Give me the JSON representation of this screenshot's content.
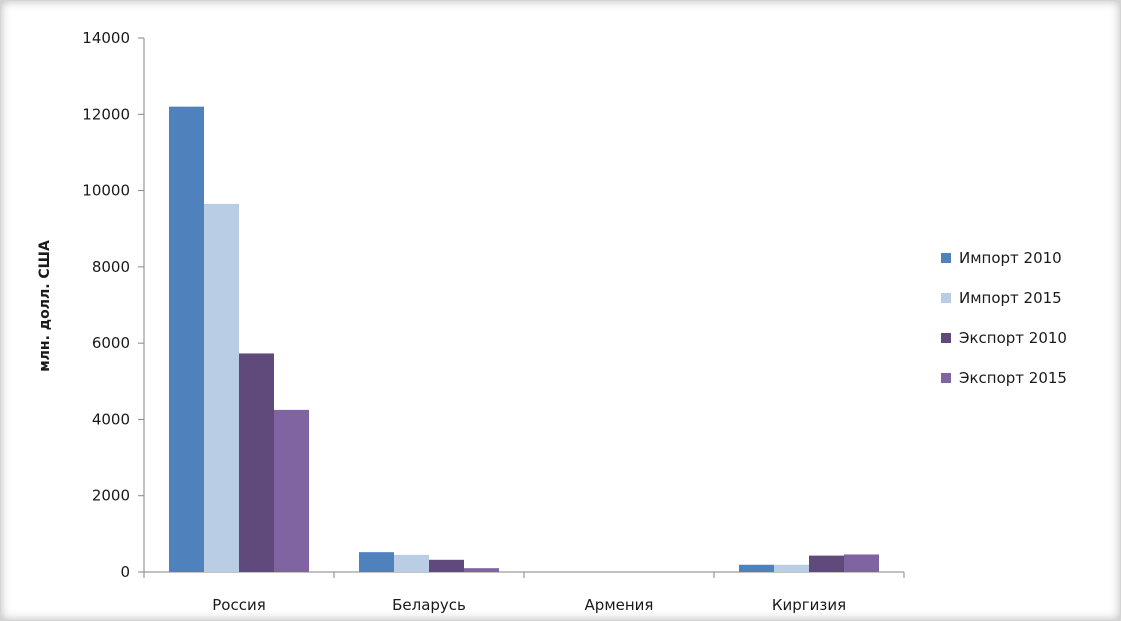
{
  "chart_data": {
    "type": "bar",
    "title": "",
    "xlabel": "",
    "ylabel": "млн. долл. США",
    "ylim": [
      0,
      14000
    ],
    "yticks": [
      0,
      2000,
      4000,
      6000,
      8000,
      10000,
      12000,
      14000
    ],
    "grid": false,
    "legend_position": "right",
    "categories": [
      "Россия",
      "Беларусь",
      "Армения",
      "Киргизия"
    ],
    "series": [
      {
        "name": "Импорт 2010",
        "color": "#4f81bd",
        "values": [
          12200,
          520,
          0,
          190
        ]
      },
      {
        "name": "Импорт 2015",
        "color": "#b9cde5",
        "values": [
          9650,
          450,
          0,
          190
        ]
      },
      {
        "name": "Экспорт 2010",
        "color": "#604a7b",
        "values": [
          5730,
          320,
          0,
          430
        ]
      },
      {
        "name": "Экспорт 2015",
        "color": "#8064a2",
        "values": [
          4250,
          100,
          0,
          460
        ]
      }
    ]
  }
}
